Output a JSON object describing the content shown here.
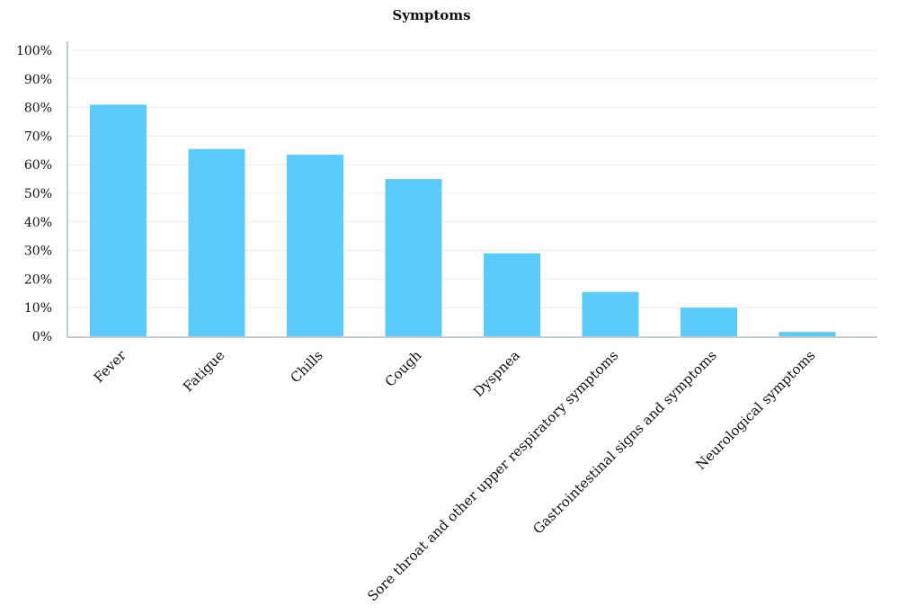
{
  "chart_data": {
    "type": "bar",
    "title": "Symptoms",
    "xlabel": "",
    "ylabel": "",
    "ylim": [
      0,
      100
    ],
    "yticks": [
      "0%",
      "10%",
      "20%",
      "30%",
      "40%",
      "50%",
      "60%",
      "70%",
      "80%",
      "90%",
      "100%"
    ],
    "categories": [
      "Fever",
      "Fatigue",
      "Chills",
      "Cough",
      "Dyspnea",
      "Sore throat and other upper respiratory symptoms",
      "Gastrointestinal signs and symptoms",
      "Neurological symptoms"
    ],
    "values": [
      81,
      65.5,
      63.5,
      55,
      29,
      15.5,
      10,
      1.5
    ],
    "unit": "%",
    "bar_color": "#5BCBFB",
    "grid": true,
    "legend": "none"
  }
}
